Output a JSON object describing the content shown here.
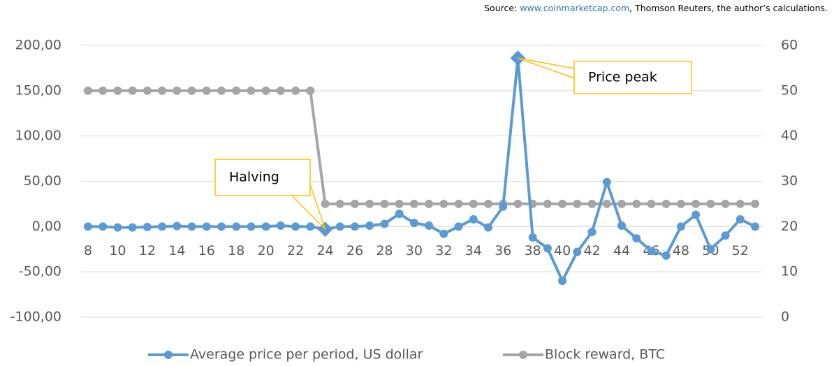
{
  "chart_data": {
    "type": "line",
    "source": {
      "prefix": "Source: ",
      "link": "www.coinmarketcap.com",
      "rest": ", Thomson Reuters, the author’s calculations."
    },
    "categories": [
      8,
      null,
      10,
      null,
      12,
      null,
      14,
      null,
      16,
      null,
      18,
      null,
      20,
      null,
      22,
      null,
      24,
      null,
      26,
      null,
      28,
      null,
      30,
      null,
      32,
      null,
      34,
      null,
      36,
      null,
      38,
      null,
      40,
      null,
      42,
      null,
      44,
      null,
      46,
      null,
      48,
      null,
      50,
      null,
      52,
      null
    ],
    "series": [
      {
        "name": "Average price per period, US dollar",
        "color": "#5b9bd5",
        "axis": "y",
        "values": [
          0,
          0,
          -1,
          -1,
          -0.5,
          0,
          0.5,
          0,
          0,
          0,
          0,
          0,
          0,
          1,
          0,
          0,
          -3,
          0,
          0,
          1,
          3,
          14,
          4,
          1,
          -8,
          0,
          8,
          -1,
          22,
          186,
          -12,
          -24,
          -60,
          -28,
          -6,
          49,
          1,
          -13,
          -27,
          -32,
          0,
          13,
          -25,
          -10,
          8,
          0
        ]
      },
      {
        "name": "Block reward, BTC",
        "color": "#a5a5a5",
        "axis": "y2",
        "values": [
          50,
          50,
          50,
          50,
          50,
          50,
          50,
          50,
          50,
          50,
          50,
          50,
          50,
          50,
          50,
          50,
          25,
          25,
          25,
          25,
          25,
          25,
          25,
          25,
          25,
          25,
          25,
          25,
          25,
          25,
          25,
          25,
          25,
          25,
          25,
          25,
          25,
          25,
          25,
          25,
          25,
          25,
          25,
          25,
          25,
          25
        ]
      }
    ],
    "ylim": [
      -100,
      200
    ],
    "yticks": [
      {
        "value": -100,
        "label": "-100,00"
      },
      {
        "value": -50,
        "label": "-50,00"
      },
      {
        "value": 0,
        "label": "0,00"
      },
      {
        "value": 50,
        "label": "50,00"
      },
      {
        "value": 100,
        "label": "100,00"
      },
      {
        "value": 150,
        "label": "150,00"
      },
      {
        "value": 200,
        "label": "200,00"
      }
    ],
    "y2lim": [
      0,
      60
    ],
    "y2ticks": [
      0,
      10,
      20,
      30,
      40,
      50,
      60
    ],
    "grid": true,
    "legend": "bottom",
    "annotations": [
      {
        "text": "Halving",
        "point": 16
      },
      {
        "text": "Price peak",
        "point": 29
      }
    ]
  }
}
